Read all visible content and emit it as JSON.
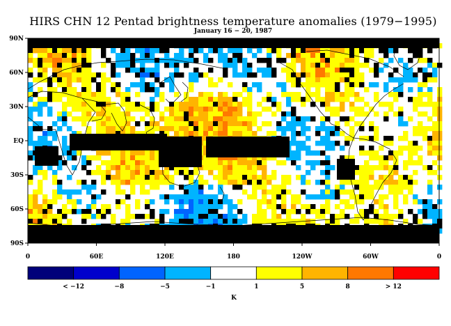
{
  "title": "HIRS CHN 12 Pentad brightness temperature anomalies (1979−1995)",
  "subtitle": "January 16 − 20, 1987",
  "lat_labels": [
    "90N",
    "60N",
    "30N",
    "EQ",
    "30S",
    "60S",
    "90S"
  ],
  "lon_labels": [
    "0",
    "60E",
    "120E",
    "180",
    "120W",
    "60W",
    "0"
  ],
  "colorbar": {
    "unit": "K",
    "labels": [
      "< −12",
      "−8",
      "−5",
      "−1",
      "1",
      "5",
      "8",
      "> 12"
    ],
    "colors": [
      "#00007a",
      "#0000cc",
      "#0064ff",
      "#00b4ff",
      "#ffffff",
      "#ffff00",
      "#ffb400",
      "#ff7800",
      "#ff0000"
    ]
  },
  "map_colors": {
    "missing": "#000000",
    "positive_weak": "#ffff00",
    "positive_mid": "#ffb400",
    "positive_strong": "#ff7800",
    "negative_weak": "#00b4ff",
    "negative_mid": "#0064ff",
    "near_zero": "#ffffff"
  }
}
